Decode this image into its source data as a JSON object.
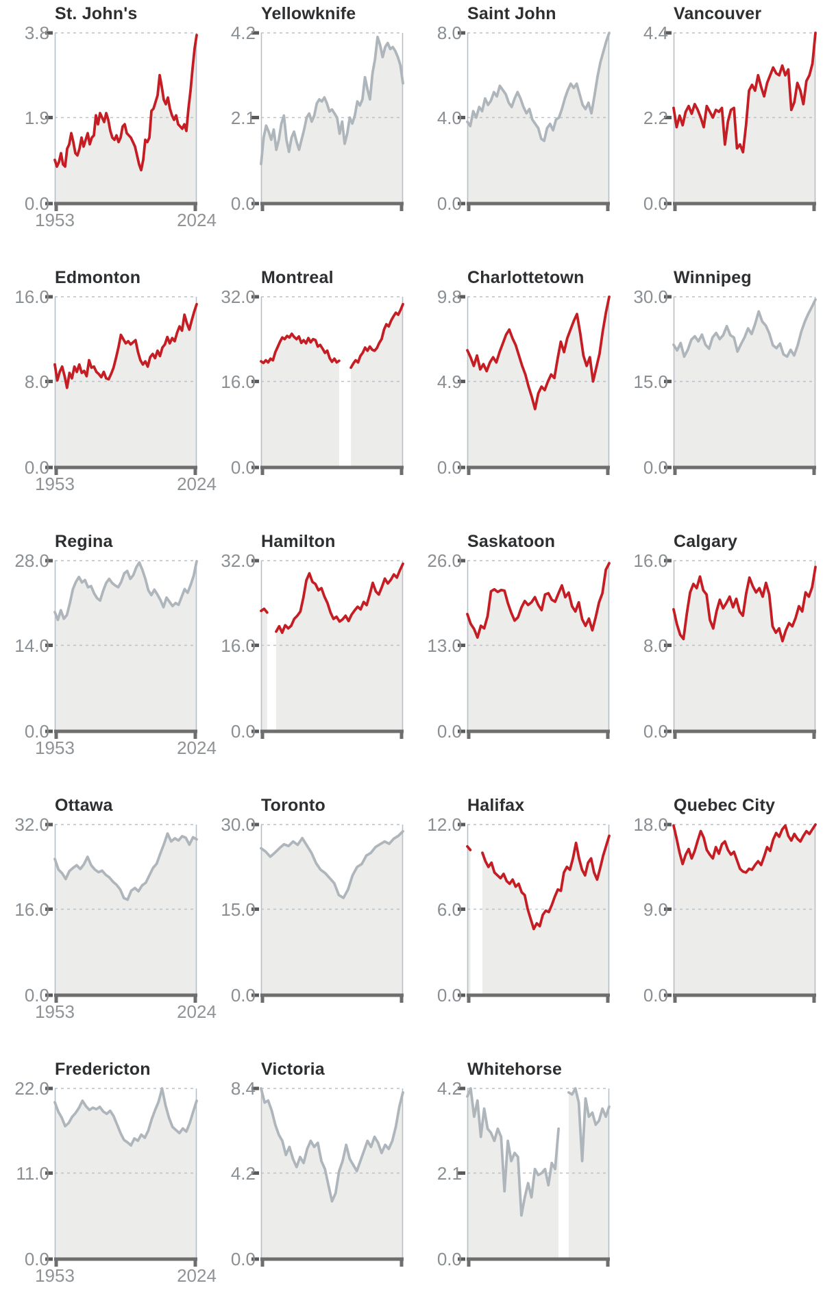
{
  "page": {
    "background": "#ffffff"
  },
  "axis": {
    "x_start_label": "1953",
    "x_end_label": "2024"
  },
  "colors": {
    "red_line": "#c41e24",
    "gray_line": "#aeb6bc",
    "area_fill": "#ececeb",
    "gridline": "#b9c1c8",
    "axis_line": "#6e6e6e",
    "tick_mark": "#5a5a5a",
    "edge_line": "#b7bfc6",
    "tick_label": "#8a8f93",
    "title_text": "#2d2f31"
  },
  "chart_data": [
    {
      "type": "line",
      "title": "St. John's",
      "color": "red",
      "ymax": 3.8,
      "y_ticks": [
        "3.8",
        "1.9",
        "0.0"
      ],
      "show_x_labels": true,
      "x_range": [
        1953,
        2024
      ],
      "values": [
        0.95,
        0.8,
        0.9,
        1.1,
        0.85,
        0.8,
        1.2,
        1.3,
        1.55,
        1.35,
        1.1,
        1.05,
        1.2,
        1.45,
        1.25,
        1.4,
        1.55,
        1.3,
        1.45,
        1.5,
        1.95,
        1.75,
        2.0,
        1.9,
        1.8,
        2.0,
        1.85,
        1.6,
        1.45,
        1.4,
        1.5,
        1.35,
        1.45,
        1.7,
        1.75,
        1.55,
        1.5,
        1.45,
        1.35,
        1.25,
        1.05,
        0.85,
        0.72,
        0.95,
        1.4,
        1.35,
        1.45,
        2.05,
        2.1,
        2.25,
        2.4,
        2.85,
        2.6,
        2.3,
        2.2,
        2.35,
        2.1,
        1.95,
        1.85,
        1.95,
        1.75,
        1.7,
        1.65,
        1.75,
        1.6,
        2.1,
        2.5,
        3.0,
        3.45,
        3.75
      ]
    },
    {
      "type": "line",
      "title": "Yellowknife",
      "color": "gray",
      "ymax": 4.2,
      "y_ticks": [
        "4.2",
        "2.1",
        "0.0"
      ],
      "show_x_labels": false,
      "x_range": [
        1953,
        2024
      ],
      "values": [
        0.95,
        1.6,
        1.9,
        1.75,
        1.55,
        1.8,
        1.3,
        1.55,
        1.95,
        2.15,
        1.55,
        1.25,
        1.6,
        1.75,
        1.5,
        1.3,
        1.55,
        1.8,
        2.1,
        2.2,
        2.0,
        2.15,
        2.45,
        2.55,
        2.5,
        2.6,
        2.45,
        2.25,
        2.3,
        2.2,
        2.1,
        1.7,
        2.0,
        1.45,
        1.7,
        2.1,
        1.95,
        2.15,
        2.5,
        2.4,
        2.55,
        3.1,
        2.8,
        2.55,
        3.2,
        3.55,
        4.1,
        3.9,
        3.6,
        3.85,
        3.95,
        3.8,
        3.85,
        3.75,
        3.6,
        3.4,
        2.95
      ]
    },
    {
      "type": "line",
      "title": "Saint John",
      "color": "gray",
      "ymax": 8.0,
      "y_ticks": [
        "8.0",
        "4.0",
        "0.0"
      ],
      "show_x_labels": false,
      "x_range": [
        1953,
        2024
      ],
      "values": [
        3.8,
        3.6,
        4.3,
        4.0,
        4.5,
        4.3,
        4.9,
        4.6,
        4.8,
        5.2,
        5.0,
        5.5,
        5.3,
        5.1,
        4.7,
        4.5,
        4.9,
        5.2,
        4.9,
        4.5,
        4.2,
        4.4,
        3.9,
        3.7,
        3.5,
        3.0,
        2.9,
        3.5,
        3.7,
        3.4,
        3.9,
        4.0,
        4.4,
        4.9,
        5.3,
        5.6,
        5.4,
        5.6,
        5.1,
        4.6,
        4.4,
        4.7,
        4.2,
        5.0,
        5.9,
        6.6,
        7.1,
        7.6,
        8.0
      ]
    },
    {
      "type": "line",
      "title": "Vancouver",
      "color": "red",
      "ymax": 4.4,
      "y_ticks": [
        "4.4",
        "2.2",
        "0.0"
      ],
      "show_x_labels": false,
      "x_range": [
        1953,
        2024
      ],
      "values": [
        2.45,
        1.95,
        2.25,
        2.0,
        2.35,
        2.5,
        2.3,
        2.55,
        2.4,
        2.2,
        1.95,
        2.5,
        2.35,
        2.2,
        2.4,
        2.35,
        2.45,
        1.5,
        2.1,
        2.4,
        2.45,
        1.4,
        1.5,
        1.3,
        2.0,
        2.9,
        3.05,
        2.9,
        3.3,
        3.0,
        2.75,
        3.1,
        3.3,
        3.5,
        3.35,
        3.3,
        3.55,
        3.3,
        3.45,
        2.4,
        2.6,
        3.1,
        2.9,
        2.55,
        3.15,
        3.3,
        3.6,
        4.4
      ]
    },
    {
      "type": "line",
      "title": "Edmonton",
      "color": "red",
      "ymax": 16.0,
      "y_ticks": [
        "16.0",
        "8.0",
        "0.0"
      ],
      "show_x_labels": true,
      "x_range": [
        1953,
        2024
      ],
      "values": [
        9.6,
        8.1,
        8.9,
        9.4,
        8.5,
        7.4,
        8.8,
        8.3,
        9.4,
        8.9,
        9.6,
        8.8,
        9.0,
        8.5,
        10.0,
        9.3,
        9.4,
        8.9,
        8.7,
        8.4,
        8.9,
        8.3,
        8.2,
        8.7,
        9.3,
        10.2,
        11.2,
        12.4,
        12.0,
        11.6,
        11.8,
        11.5,
        11.7,
        11.9,
        10.8,
        10.0,
        9.6,
        9.9,
        9.4,
        10.3,
        10.6,
        10.2,
        10.9,
        10.4,
        11.2,
        11.5,
        12.2,
        11.6,
        12.1,
        11.8,
        12.6,
        13.2,
        12.8,
        14.3,
        13.5,
        12.9,
        13.8,
        14.6,
        15.3
      ]
    },
    {
      "type": "line",
      "title": "Montreal",
      "color": "red",
      "ymax": 32.0,
      "y_ticks": [
        "32.0",
        "16.0",
        "0.0"
      ],
      "show_x_labels": false,
      "x_range": [
        1953,
        2024
      ],
      "values": [
        19.8,
        19.5,
        20.0,
        19.6,
        20.3,
        20.0,
        21.5,
        22.5,
        23.5,
        24.3,
        24.0,
        24.6,
        24.3,
        25.0,
        24.4,
        24.0,
        24.5,
        23.3,
        23.8,
        23.2,
        24.2,
        23.4,
        24.0,
        23.8,
        22.6,
        22.9,
        22.2,
        21.4,
        21.8,
        20.4,
        19.7,
        20.3,
        19.6,
        19.9,
        null,
        null,
        null,
        null,
        18.6,
        19.4,
        20.0,
        19.6,
        20.8,
        21.4,
        22.4,
        21.8,
        22.6,
        22.0,
        21.8,
        22.3,
        23.3,
        24.0,
        25.8,
        26.8,
        26.4,
        27.5,
        28.3,
        29.0,
        28.6,
        29.5,
        30.6
      ]
    },
    {
      "type": "line",
      "title": "Charlottetown",
      "color": "red",
      "ymax": 9.8,
      "y_ticks": [
        "9.8",
        "4.9",
        "0.0"
      ],
      "show_x_labels": false,
      "x_range": [
        1953,
        2024
      ],
      "values": [
        6.7,
        6.3,
        5.8,
        6.4,
        5.6,
        5.9,
        5.5,
        6.0,
        6.3,
        6.0,
        6.6,
        7.1,
        7.6,
        7.9,
        7.4,
        7.0,
        6.4,
        5.8,
        5.3,
        4.6,
        4.0,
        3.3,
        4.2,
        4.6,
        4.4,
        4.9,
        5.3,
        5.1,
        6.2,
        7.2,
        6.6,
        7.4,
        7.9,
        8.4,
        8.8,
        7.7,
        6.4,
        5.8,
        6.3,
        4.9,
        5.7,
        6.5,
        7.8,
        8.9,
        9.8
      ]
    },
    {
      "type": "line",
      "title": "Winnipeg",
      "color": "gray",
      "ymax": 30.0,
      "y_ticks": [
        "30.0",
        "15.0",
        "0.0"
      ],
      "show_x_labels": false,
      "x_range": [
        1953,
        2024
      ],
      "values": [
        21.5,
        20.5,
        21.8,
        19.4,
        20.6,
        22.4,
        23.0,
        22.1,
        23.3,
        21.5,
        20.8,
        22.8,
        23.6,
        22.5,
        23.2,
        24.8,
        23.2,
        22.8,
        20.3,
        21.6,
        22.8,
        24.4,
        23.4,
        25.2,
        27.4,
        25.6,
        24.9,
        23.5,
        21.4,
        20.9,
        21.7,
        19.8,
        19.4,
        20.6,
        19.6,
        21.4,
        23.8,
        25.6,
        27.0,
        28.2,
        29.5
      ]
    },
    {
      "type": "line",
      "title": "Regina",
      "color": "gray",
      "ymax": 28.0,
      "y_ticks": [
        "28.0",
        "14.0",
        "0.0"
      ],
      "show_x_labels": true,
      "x_range": [
        1953,
        2024
      ],
      "values": [
        19.5,
        18.2,
        19.8,
        18.4,
        19.0,
        21.0,
        23.3,
        24.5,
        25.3,
        24.4,
        24.8,
        23.6,
        23.8,
        22.6,
        21.8,
        21.4,
        23.0,
        24.3,
        25.0,
        24.3,
        23.9,
        23.6,
        24.5,
        25.9,
        26.3,
        25.0,
        25.6,
        26.9,
        27.7,
        26.5,
        25.0,
        23.1,
        22.3,
        23.2,
        22.4,
        21.5,
        20.3,
        21.9,
        21.2,
        20.5,
        21.0,
        20.7,
        22.0,
        23.3,
        22.7,
        24.0,
        25.5,
        27.9
      ]
    },
    {
      "type": "line",
      "title": "Hamilton",
      "color": "red",
      "ymax": 32.0,
      "y_ticks": [
        "32.0",
        "16.0",
        "0.0"
      ],
      "show_x_labels": false,
      "x_range": [
        1953,
        2024
      ],
      "values": [
        22.5,
        22.9,
        22.2,
        null,
        null,
        18.6,
        19.6,
        18.4,
        19.8,
        19.2,
        19.7,
        21.0,
        21.6,
        22.4,
        25.0,
        28.3,
        29.6,
        28.0,
        27.6,
        26.4,
        26.8,
        25.2,
        24.0,
        22.2,
        21.0,
        21.4,
        20.5,
        20.9,
        21.6,
        20.6,
        21.8,
        22.6,
        23.3,
        22.8,
        24.2,
        23.6,
        25.6,
        27.8,
        26.2,
        25.6,
        27.0,
        28.6,
        27.7,
        28.4,
        29.4,
        28.8,
        30.2,
        31.4
      ]
    },
    {
      "type": "line",
      "title": "Saskatoon",
      "color": "red",
      "ymax": 26.0,
      "y_ticks": [
        "26.0",
        "13.0",
        "0.0"
      ],
      "show_x_labels": false,
      "x_range": [
        1953,
        2024
      ],
      "values": [
        17.8,
        16.3,
        15.5,
        14.2,
        16.0,
        15.6,
        17.5,
        21.3,
        21.6,
        21.2,
        21.5,
        21.4,
        19.5,
        18.0,
        16.8,
        17.3,
        18.8,
        19.8,
        19.2,
        19.6,
        20.4,
        19.2,
        18.4,
        20.8,
        21.0,
        20.0,
        19.7,
        21.0,
        22.2,
        20.4,
        21.1,
        19.0,
        18.2,
        19.6,
        17.0,
        16.0,
        17.1,
        15.3,
        17.3,
        19.6,
        21.0,
        24.6,
        25.6
      ]
    },
    {
      "type": "line",
      "title": "Calgary",
      "color": "red",
      "ymax": 16.0,
      "y_ticks": [
        "16.0",
        "8.0",
        "0.0"
      ],
      "show_x_labels": false,
      "x_range": [
        1953,
        2024
      ],
      "values": [
        11.4,
        10.0,
        9.0,
        8.6,
        11.0,
        13.0,
        13.8,
        13.4,
        14.5,
        13.2,
        12.8,
        10.4,
        9.6,
        11.2,
        12.3,
        11.5,
        12.0,
        12.6,
        11.6,
        12.4,
        11.2,
        10.8,
        12.9,
        14.4,
        13.6,
        13.0,
        13.4,
        12.6,
        13.9,
        12.8,
        9.8,
        9.2,
        9.6,
        8.4,
        9.4,
        10.1,
        9.8,
        10.6,
        11.7,
        11.2,
        13.0,
        12.6,
        13.5,
        15.4
      ]
    },
    {
      "type": "line",
      "title": "Ottawa",
      "color": "gray",
      "ymax": 32.0,
      "y_ticks": [
        "32.0",
        "16.0",
        "0.0"
      ],
      "show_x_labels": true,
      "x_range": [
        1953,
        2024
      ],
      "values": [
        25.5,
        23.5,
        22.8,
        21.7,
        23.2,
        23.8,
        24.3,
        23.6,
        24.5,
        25.9,
        24.3,
        23.5,
        23.0,
        23.3,
        22.5,
        22.0,
        21.2,
        20.6,
        19.7,
        18.1,
        17.8,
        19.5,
        20.0,
        19.4,
        20.5,
        21.0,
        22.4,
        23.8,
        24.6,
        26.5,
        28.3,
        30.3,
        28.8,
        29.4,
        29.0,
        29.8,
        29.5,
        28.2,
        29.6,
        29.2
      ]
    },
    {
      "type": "line",
      "title": "Toronto",
      "color": "gray",
      "ymax": 30.0,
      "y_ticks": [
        "30.0",
        "15.0",
        "0.0"
      ],
      "show_x_labels": false,
      "x_range": [
        1953,
        2024
      ],
      "values": [
        25.8,
        25.2,
        24.3,
        25.0,
        25.8,
        26.5,
        26.2,
        27.0,
        26.4,
        27.6,
        26.3,
        25.0,
        23.2,
        22.0,
        21.4,
        20.5,
        19.6,
        17.5,
        17.0,
        18.5,
        21.0,
        22.5,
        23.0,
        24.5,
        25.0,
        26.0,
        26.5,
        27.0,
        26.6,
        27.5,
        28.0,
        28.8
      ]
    },
    {
      "type": "line",
      "title": "Halifax",
      "color": "red",
      "ymax": 12.0,
      "y_ticks": [
        "12.0",
        "6.0",
        "0.0"
      ],
      "show_x_labels": false,
      "x_range": [
        1953,
        2024
      ],
      "values": [
        10.45,
        10.2,
        null,
        null,
        null,
        10.0,
        9.4,
        9.0,
        9.3,
        8.6,
        8.4,
        8.2,
        8.5,
        8.0,
        7.8,
        8.1,
        7.6,
        7.8,
        7.2,
        7.0,
        6.0,
        5.3,
        4.6,
        5.0,
        4.8,
        5.6,
        5.9,
        5.8,
        6.3,
        6.9,
        7.4,
        7.3,
        8.6,
        9.0,
        8.8,
        9.6,
        10.7,
        9.6,
        8.8,
        8.4,
        9.3,
        9.6,
        8.6,
        8.1,
        8.9,
        9.8,
        10.5,
        11.2
      ]
    },
    {
      "type": "line",
      "title": "Quebec City",
      "color": "red",
      "ymax": 18.0,
      "y_ticks": [
        "18.0",
        "9.0",
        "0.0"
      ],
      "show_x_labels": false,
      "x_range": [
        1953,
        2024
      ],
      "values": [
        17.9,
        16.5,
        15.0,
        13.8,
        14.8,
        15.4,
        14.4,
        15.2,
        16.3,
        17.3,
        16.6,
        15.3,
        14.8,
        14.4,
        15.6,
        14.9,
        15.9,
        16.2,
        15.3,
        14.8,
        15.1,
        14.2,
        13.3,
        13.0,
        12.9,
        13.3,
        13.2,
        13.7,
        14.1,
        13.7,
        14.6,
        15.6,
        15.2,
        16.4,
        17.1,
        16.7,
        17.5,
        17.9,
        16.8,
        16.3,
        17.0,
        16.5,
        16.2,
        16.8,
        17.3,
        17.0,
        17.5,
        18.0
      ]
    },
    {
      "type": "line",
      "title": "Fredericton",
      "color": "gray",
      "ymax": 22.0,
      "y_ticks": [
        "22.0",
        "11.0",
        "0.0"
      ],
      "show_x_labels": true,
      "x_range": [
        1953,
        2024
      ],
      "values": [
        20.2,
        19.0,
        18.2,
        17.1,
        17.5,
        18.3,
        18.8,
        19.5,
        20.4,
        19.7,
        19.2,
        19.5,
        19.3,
        19.6,
        19.0,
        18.7,
        19.1,
        18.4,
        17.3,
        16.2,
        15.3,
        15.0,
        14.6,
        15.5,
        15.2,
        16.0,
        15.6,
        16.5,
        18.0,
        19.2,
        20.3,
        22.0,
        19.8,
        18.2,
        17.0,
        16.6,
        16.2,
        16.8,
        16.4,
        17.5,
        19.0,
        20.4
      ]
    },
    {
      "type": "line",
      "title": "Victoria",
      "color": "gray",
      "ymax": 8.4,
      "y_ticks": [
        "8.4",
        "4.2",
        "0.0"
      ],
      "show_x_labels": false,
      "x_range": [
        1953,
        2024
      ],
      "values": [
        8.4,
        7.7,
        7.8,
        7.3,
        6.6,
        6.1,
        5.8,
        5.1,
        5.5,
        4.9,
        4.5,
        5.0,
        4.7,
        5.4,
        5.8,
        5.5,
        5.7,
        4.8,
        4.4,
        3.6,
        2.8,
        3.2,
        4.3,
        4.8,
        5.6,
        4.9,
        4.6,
        4.3,
        4.8,
        5.3,
        5.8,
        5.5,
        6.0,
        5.7,
        5.2,
        5.6,
        5.4,
        5.8,
        6.5,
        7.5,
        8.2
      ]
    },
    {
      "type": "line",
      "title": "Whitehorse",
      "color": "gray",
      "ymax": 4.2,
      "y_ticks": [
        "4.2",
        "2.1",
        "0.0"
      ],
      "show_x_labels": false,
      "x_range": [
        1953,
        2024
      ],
      "values": [
        4.0,
        4.2,
        3.5,
        3.9,
        3.0,
        3.7,
        3.2,
        3.1,
        2.9,
        3.2,
        3.0,
        1.65,
        2.9,
        2.4,
        2.6,
        2.5,
        1.05,
        1.5,
        1.85,
        1.5,
        2.2,
        2.05,
        2.1,
        2.2,
        1.8,
        2.35,
        2.2,
        3.2,
        null,
        null,
        4.1,
        4.05,
        4.2,
        3.85,
        2.4,
        3.95,
        3.5,
        3.6,
        3.3,
        3.4,
        3.7,
        3.5,
        3.75
      ]
    }
  ]
}
